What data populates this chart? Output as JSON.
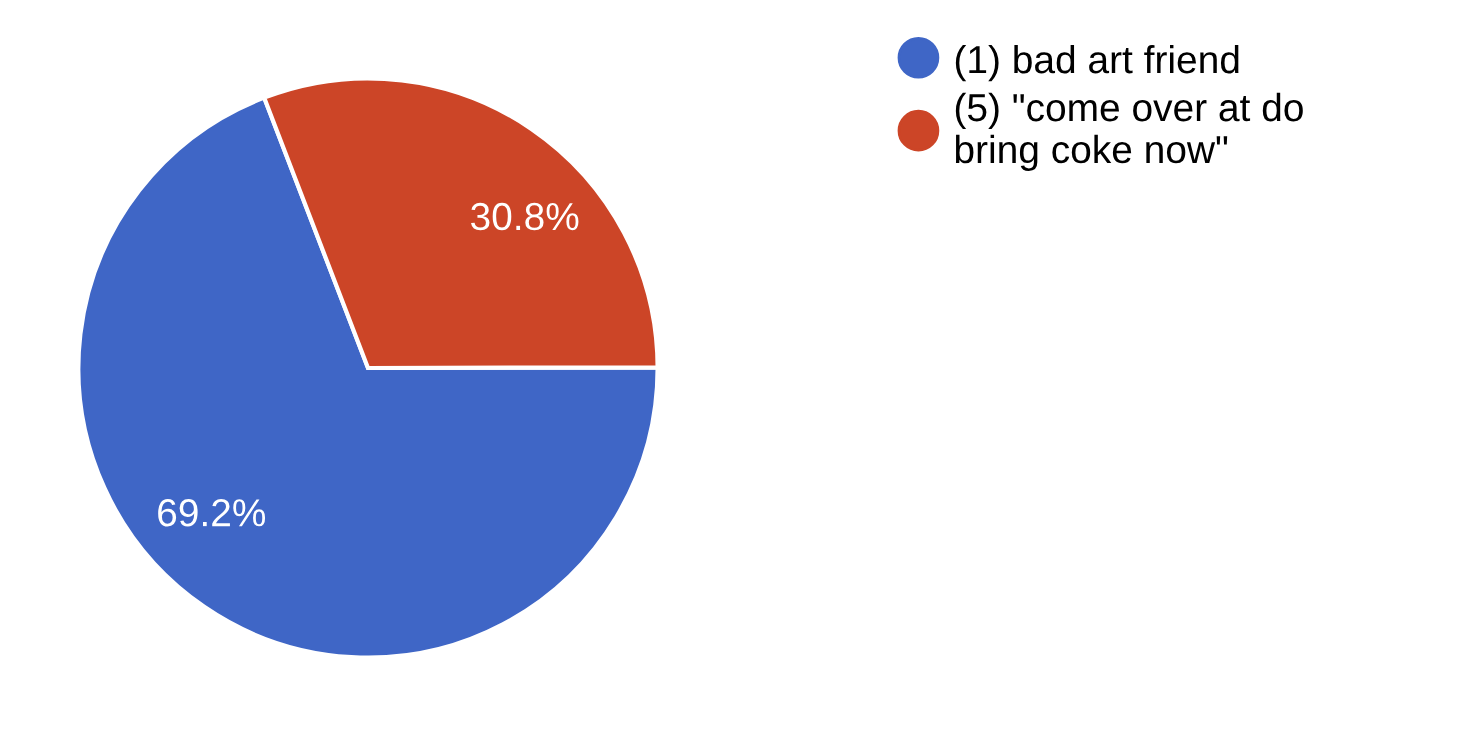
{
  "chart_data": {
    "type": "pie",
    "categories": [
      "(1) bad art friend",
      "(5) \"come over at do bring coke now\""
    ],
    "values": [
      69.2,
      30.8
    ],
    "colors": [
      "#3f66c6",
      "#cc4527"
    ],
    "value_labels": [
      "69.2%",
      "30.8%"
    ],
    "legend": "top right"
  }
}
